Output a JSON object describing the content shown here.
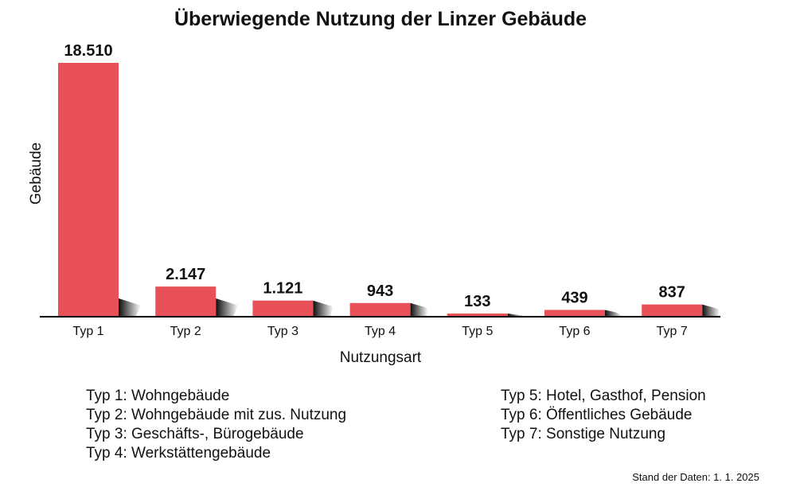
{
  "chart_data": {
    "type": "bar",
    "title": "Überwiegende Nutzung der Linzer Gebäude",
    "xlabel": "Nutzungsart",
    "ylabel": "Gebäude",
    "categories": [
      "Typ 1",
      "Typ 2",
      "Typ 3",
      "Typ 4",
      "Typ 5",
      "Typ 6",
      "Typ 7"
    ],
    "values": [
      18510,
      2147,
      1121,
      943,
      133,
      439,
      837
    ],
    "value_labels": [
      "18.510",
      "2.147",
      "1.121",
      "943",
      "133",
      "439",
      "837"
    ],
    "ylim": [
      0,
      18510
    ],
    "grid": false,
    "bar_color": "#e85158"
  },
  "legend": {
    "left": [
      "Typ 1: Wohngebäude",
      "Typ 2: Wohngebäude mit zus. Nutzung",
      "Typ 3: Geschäfts-, Bürogebäude",
      "Typ 4: Werkstättengebäude"
    ],
    "right": [
      "Typ 5: Hotel, Gasthof, Pension",
      "Typ 6: Öffentliches Gebäude",
      "Typ 7: Sonstige Nutzung"
    ]
  },
  "footnote": "Stand der Daten: 1. 1. 2025"
}
